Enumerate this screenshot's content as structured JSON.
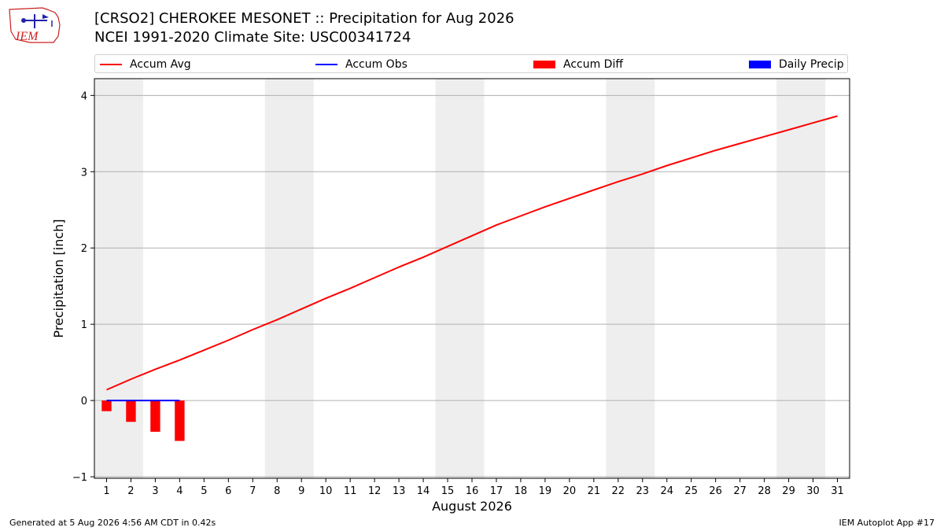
{
  "header": {
    "logo_text": "IEM",
    "title_line1": "[CRSO2] CHEROKEE MESONET :: Precipitation for Aug 2026",
    "title_line2": "NCEI 1991-2020 Climate Site: USC00341724"
  },
  "legend": {
    "items": [
      {
        "label": "Accum Avg",
        "kind": "line",
        "color": "#ff0000"
      },
      {
        "label": "Accum Obs",
        "kind": "line",
        "color": "#0000ff"
      },
      {
        "label": "Accum Diff",
        "kind": "box",
        "color": "#ff0000"
      },
      {
        "label": "Daily Precip",
        "kind": "box",
        "color": "#0000ff"
      }
    ]
  },
  "footer": {
    "left": "Generated at 5 Aug 2026 4:56 AM CDT in 0.42s",
    "right": "IEM Autoplot App #17"
  },
  "chart_data": {
    "type": "line",
    "xlabel": "August 2026",
    "ylabel": "Precipitation [inch]",
    "x": [
      1,
      2,
      3,
      4,
      5,
      6,
      7,
      8,
      9,
      10,
      11,
      12,
      13,
      14,
      15,
      16,
      17,
      18,
      19,
      20,
      21,
      22,
      23,
      24,
      25,
      26,
      27,
      28,
      29,
      30,
      31
    ],
    "xlim": [
      0.5,
      31.5
    ],
    "ylim": [
      -1.02,
      4.22
    ],
    "yticks": [
      -1,
      0,
      1,
      2,
      3,
      4
    ],
    "grid": "horizontal",
    "weekend_shading": [
      [
        0.5,
        2.5
      ],
      [
        7.5,
        9.5
      ],
      [
        14.5,
        16.5
      ],
      [
        21.5,
        23.5
      ],
      [
        28.5,
        30.5
      ]
    ],
    "series": [
      {
        "name": "Accum Avg",
        "kind": "line",
        "color": "#ff0000",
        "values": [
          0.14,
          0.28,
          0.41,
          0.53,
          0.66,
          0.79,
          0.93,
          1.06,
          1.2,
          1.34,
          1.47,
          1.61,
          1.75,
          1.88,
          2.02,
          2.16,
          2.3,
          2.42,
          2.54,
          2.65,
          2.76,
          2.87,
          2.97,
          3.08,
          3.18,
          3.28,
          3.37,
          3.46,
          3.55,
          3.64,
          3.73
        ]
      },
      {
        "name": "Accum Obs",
        "kind": "line",
        "color": "#0000ff",
        "x": [
          1,
          2,
          3,
          4
        ],
        "values": [
          0.0,
          0.0,
          0.0,
          0.0
        ]
      },
      {
        "name": "Accum Diff",
        "kind": "bar",
        "color": "#ff0000",
        "x": [
          1,
          2,
          3,
          4
        ],
        "values": [
          -0.14,
          -0.28,
          -0.41,
          -0.53
        ]
      },
      {
        "name": "Daily Precip",
        "kind": "bar",
        "color": "#0000ff",
        "x": [
          1,
          2,
          3,
          4
        ],
        "values": [
          0.0,
          0.0,
          0.0,
          0.0
        ]
      }
    ]
  }
}
